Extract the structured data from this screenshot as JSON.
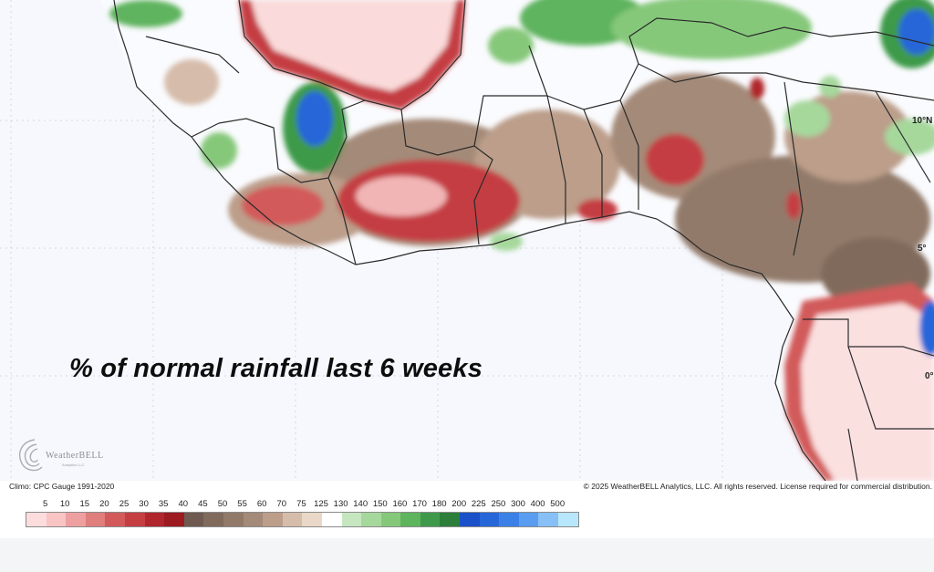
{
  "map": {
    "title": "% of normal rainfall last 6 weeks",
    "lat_labels": [
      "10°N",
      "5°",
      "0°"
    ],
    "colors": {
      "ocean": "#f6f8fd",
      "border": "#2b2b2b"
    }
  },
  "branding": {
    "logo_text": "WeatherBELL",
    "logo_subtext": "Analytics LLC"
  },
  "info": {
    "climo": "Climo: CPC Gauge 1991-2020",
    "copyright": "© 2025 WeatherBELL Analytics, LLC. All rights reserved. License required for commercial distribution."
  },
  "legend": {
    "labels": [
      "5",
      "10",
      "15",
      "20",
      "25",
      "30",
      "35",
      "40",
      "45",
      "50",
      "55",
      "60",
      "70",
      "75",
      "125",
      "130",
      "140",
      "150",
      "160",
      "170",
      "180",
      "200",
      "225",
      "250",
      "300",
      "400",
      "500"
    ],
    "colors": [
      "#fcdcdc",
      "#f8c4c4",
      "#eea0a0",
      "#e07e7e",
      "#d25a5a",
      "#c43e42",
      "#b0262c",
      "#9c1a20",
      "#6e5a50",
      "#806a5c",
      "#927a6a",
      "#a48a78",
      "#bc9e8a",
      "#d6bcaa",
      "#e9d8c8",
      "#ffffff",
      "#c6e6c0",
      "#a6d89c",
      "#86c87a",
      "#5fb45e",
      "#3e9a4a",
      "#2c7e3a",
      "#1a50c8",
      "#2766d8",
      "#3a80e6",
      "#5a9cf0",
      "#86c0f6",
      "#b8e6fa"
    ]
  }
}
